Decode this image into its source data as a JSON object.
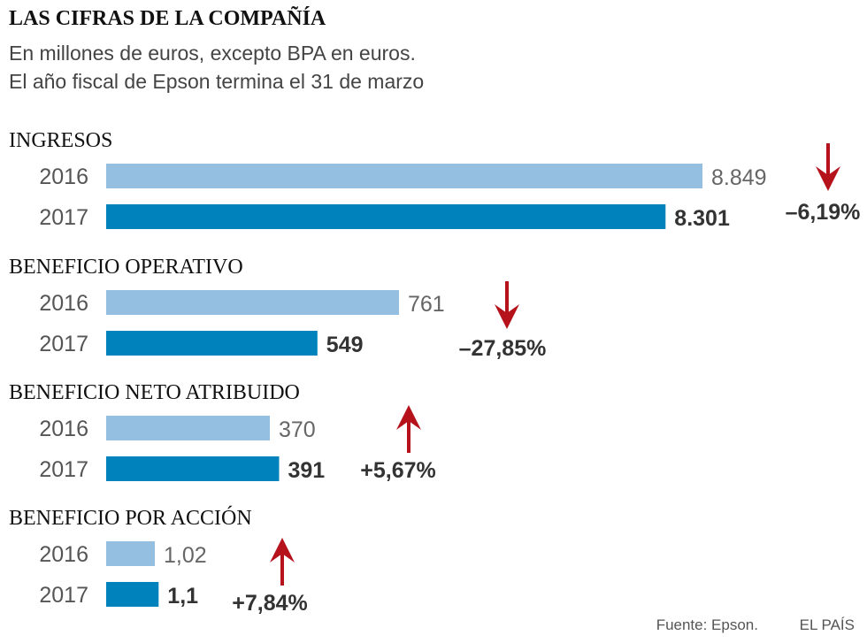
{
  "colors": {
    "bar_2016": "#95bfe0",
    "bar_2017": "#0083bd",
    "arrow": "#b5121b"
  },
  "chart_data": {
    "type": "bar",
    "title": "LAS CIFRAS DE LA COMPAÑÍA",
    "subtitle_lines": [
      "En millones de euros, excepto BPA en euros.",
      "El año fiscal de Epson termina el 31 de marzo"
    ],
    "sections": [
      {
        "name": "INGRESOS",
        "rows": [
          {
            "year": "2016",
            "value": 8849,
            "label": "8.849"
          },
          {
            "year": "2017",
            "value": 8301,
            "label": "8.301"
          }
        ],
        "change": "–6,19%",
        "direction": "down"
      },
      {
        "name": "BENEFICIO OPERATIVO",
        "rows": [
          {
            "year": "2016",
            "value": 761,
            "label": "761"
          },
          {
            "year": "2017",
            "value": 549,
            "label": "549"
          }
        ],
        "change": "–27,85%",
        "direction": "down"
      },
      {
        "name": "BENEFICIO NETO ATRIBUIDO",
        "rows": [
          {
            "year": "2016",
            "value": 370,
            "label": "370"
          },
          {
            "year": "2017",
            "value": 391,
            "label": "391"
          }
        ],
        "change": "+5,67%",
        "direction": "up"
      },
      {
        "name": "BENEFICIO POR ACCIÓN",
        "rows": [
          {
            "year": "2016",
            "value": 1.02,
            "label": "1,02"
          },
          {
            "year": "2017",
            "value": 1.1,
            "label": "1,1"
          }
        ],
        "change": "+7,84%",
        "direction": "up"
      }
    ],
    "source": "Fuente: Epson.",
    "credit": "EL PAÍS"
  }
}
